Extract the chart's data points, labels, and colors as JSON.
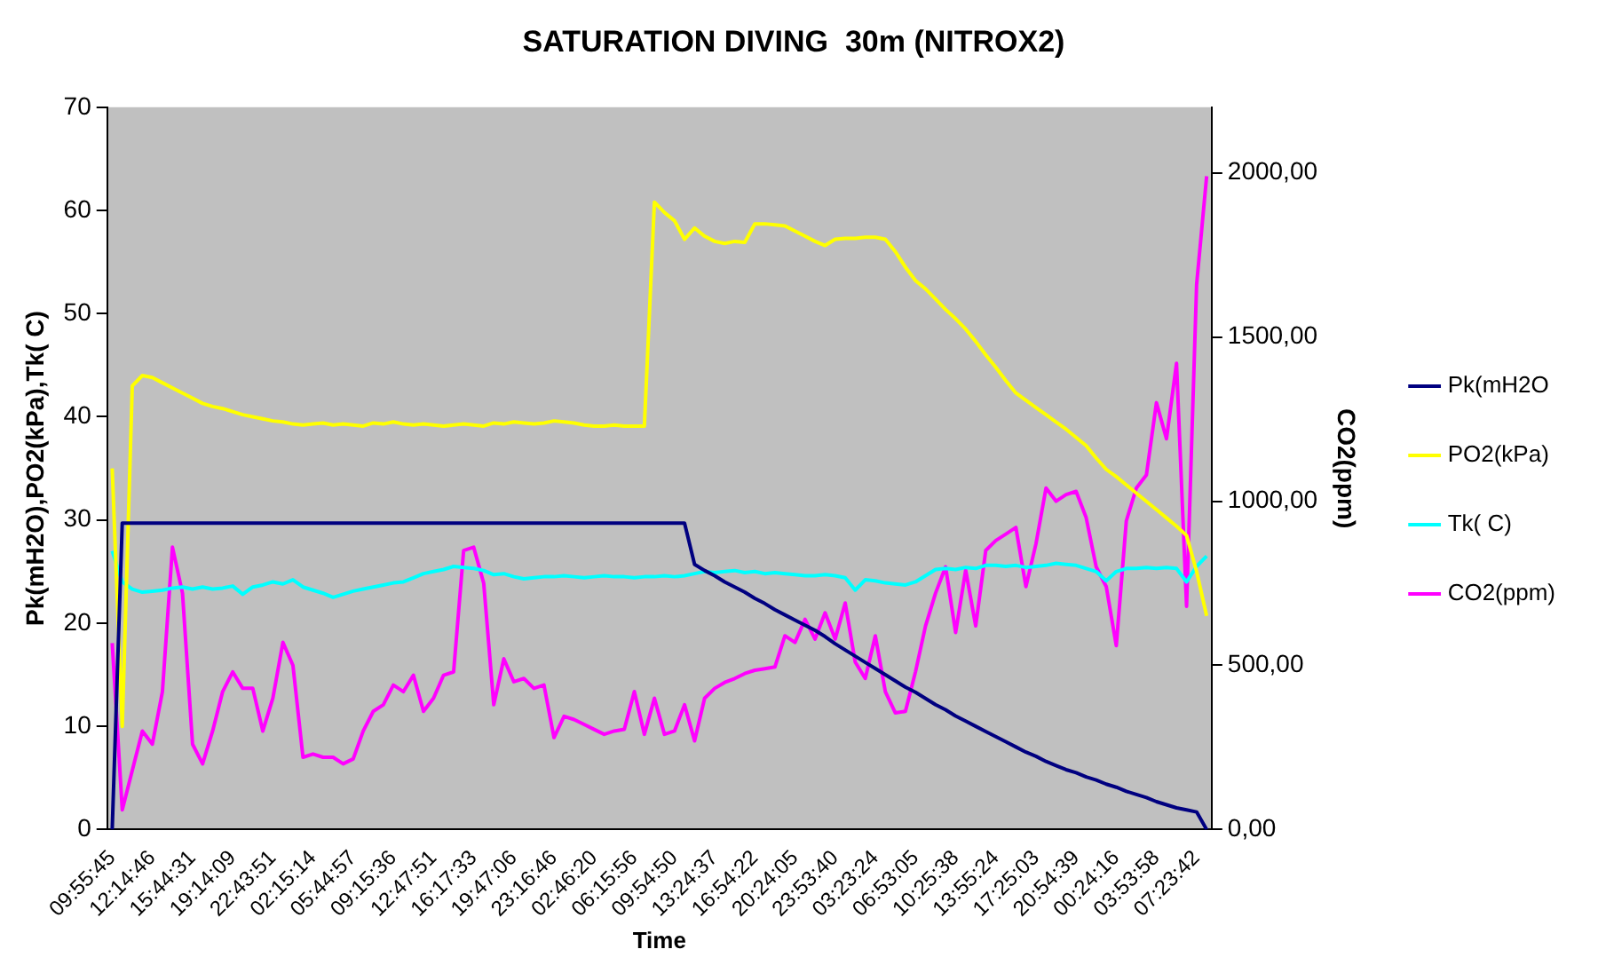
{
  "chart_data": {
    "type": "line",
    "title": "SATURATION DIVING  30m (NITROX2)",
    "xlabel": "Time",
    "ylabel": "Pk(mH2O),PO2(kPa),Tk( C)",
    "y2label": "CO2(ppm)",
    "categories": [
      "09:55:45",
      null,
      null,
      null,
      "12:14:46",
      null,
      null,
      null,
      "15:44:31",
      null,
      null,
      null,
      "19:14:09",
      null,
      null,
      null,
      "22:43:51",
      null,
      null,
      null,
      "02:15:14",
      null,
      null,
      null,
      "05:44:57",
      null,
      null,
      null,
      "09:15:36",
      null,
      null,
      null,
      "12:47:51",
      null,
      null,
      null,
      "16:17:33",
      null,
      null,
      null,
      "19:47:06",
      null,
      null,
      null,
      "23:16:46",
      null,
      null,
      null,
      "02:46:20",
      null,
      null,
      null,
      "06:15:56",
      null,
      null,
      null,
      "09:54:50",
      null,
      null,
      null,
      "13:24:37",
      null,
      null,
      null,
      "16:54:22",
      null,
      null,
      null,
      "20:24:05",
      null,
      null,
      null,
      "23:53:40",
      null,
      null,
      null,
      "03:23:24",
      null,
      null,
      null,
      "06:53:05",
      null,
      null,
      null,
      "10:25:38",
      null,
      null,
      null,
      "13:55:24",
      null,
      null,
      null,
      "17:25:03",
      null,
      null,
      null,
      "20:54:39",
      null,
      null,
      null,
      "00:24:16",
      null,
      null,
      null,
      "03:53:58",
      null,
      null,
      null,
      "07:23:42",
      null
    ],
    "series": [
      {
        "name": "Pk(mH2O",
        "color": "#000080",
        "values": [
          0,
          29.7,
          29.7,
          29.7,
          29.7,
          29.7,
          29.7,
          29.7,
          29.7,
          29.7,
          29.7,
          29.7,
          29.7,
          29.7,
          29.7,
          29.7,
          29.7,
          29.7,
          29.7,
          29.7,
          29.7,
          29.7,
          29.7,
          29.7,
          29.7,
          29.7,
          29.7,
          29.7,
          29.7,
          29.7,
          29.7,
          29.7,
          29.7,
          29.7,
          29.7,
          29.7,
          29.7,
          29.7,
          29.7,
          29.7,
          29.7,
          29.7,
          29.7,
          29.7,
          29.7,
          29.7,
          29.7,
          29.7,
          29.7,
          29.7,
          29.7,
          29.7,
          29.7,
          29.7,
          29.7,
          29.7,
          29.7,
          29.7,
          25.7,
          25.1,
          24.6,
          24.0,
          23.5,
          23.0,
          22.4,
          21.9,
          21.3,
          20.8,
          20.3,
          19.8,
          19.3,
          18.7,
          18.0,
          17.4,
          16.8,
          16.2,
          15.6,
          15.0,
          14.4,
          13.8,
          13.3,
          12.7,
          12.1,
          11.6,
          11.0,
          10.5,
          10.0,
          9.5,
          9.0,
          8.5,
          8.0,
          7.5,
          7.1,
          6.6,
          6.2,
          5.8,
          5.5,
          5.1,
          4.8,
          4.4,
          4.1,
          3.7,
          3.4,
          3.1,
          2.7,
          2.4,
          2.1,
          1.9,
          1.7,
          0
        ]
      },
      {
        "name": "PO2(kPa)",
        "color": "#ffff00",
        "values": [
          35,
          10,
          43,
          44,
          43.8,
          43.3,
          42.8,
          42.3,
          41.8,
          41.3,
          41,
          40.8,
          40.5,
          40.2,
          40,
          39.8,
          39.6,
          39.5,
          39.3,
          39.2,
          39.3,
          39.4,
          39.2,
          39.3,
          39.2,
          39.1,
          39.4,
          39.3,
          39.5,
          39.3,
          39.2,
          39.3,
          39.2,
          39.1,
          39.2,
          39.3,
          39.2,
          39.1,
          39.4,
          39.3,
          39.5,
          39.4,
          39.3,
          39.4,
          39.6,
          39.5,
          39.4,
          39.2,
          39.1,
          39.1,
          39.2,
          39.1,
          39.1,
          39.1,
          60.8,
          59.8,
          59,
          57.2,
          58.3,
          57.5,
          57,
          56.8,
          57,
          56.9,
          58.7,
          58.7,
          58.6,
          58.5,
          58,
          57.5,
          57,
          56.6,
          57.2,
          57.3,
          57.3,
          57.4,
          57.4,
          57.2,
          56,
          54.5,
          53.2,
          52.4,
          51.4,
          50.4,
          49.5,
          48.5,
          47.3,
          46,
          44.8,
          43.5,
          42.3,
          41.6,
          40.9,
          40.2,
          39.5,
          38.8,
          38,
          37.2,
          36,
          34.9,
          34.2,
          33.4,
          32.6,
          31.8,
          31,
          30.2,
          29.4,
          28.5,
          25,
          20.7
        ]
      },
      {
        "name": "Tk( C)",
        "color": "#00ffff",
        "values": [
          27,
          24,
          23.3,
          23.0,
          23.1,
          23.2,
          23.4,
          23.5,
          23.3,
          23.5,
          23.3,
          23.4,
          23.6,
          22.8,
          23.5,
          23.7,
          24.0,
          23.8,
          24.2,
          23.5,
          23.2,
          22.9,
          22.5,
          22.8,
          23.1,
          23.3,
          23.5,
          23.7,
          23.9,
          24.0,
          24.4,
          24.8,
          25.0,
          25.2,
          25.5,
          25.4,
          25.3,
          25.1,
          24.7,
          24.8,
          24.5,
          24.3,
          24.4,
          24.5,
          24.5,
          24.6,
          24.5,
          24.4,
          24.5,
          24.6,
          24.5,
          24.5,
          24.4,
          24.5,
          24.5,
          24.6,
          24.5,
          24.6,
          24.8,
          25.0,
          24.9,
          25.0,
          25.1,
          24.9,
          25.0,
          24.8,
          24.9,
          24.8,
          24.7,
          24.6,
          24.6,
          24.7,
          24.6,
          24.4,
          23.2,
          24.2,
          24.1,
          23.9,
          23.8,
          23.7,
          24.0,
          24.6,
          25.2,
          25.3,
          25.2,
          25.4,
          25.3,
          25.6,
          25.6,
          25.5,
          25.6,
          25.4,
          25.5,
          25.6,
          25.8,
          25.7,
          25.6,
          25.3,
          25.0,
          24.1,
          25.0,
          25.3,
          25.3,
          25.4,
          25.3,
          25.4,
          25.3,
          24.0,
          25.5,
          26.5
        ]
      },
      {
        "name": "CO2(ppm)",
        "color": "#ff00ff",
        "axis": "y2",
        "values": [
          568,
          60,
          180,
          300,
          260,
          420,
          860,
          720,
          260,
          200,
          300,
          420,
          480,
          430,
          430,
          300,
          400,
          570,
          500,
          220,
          230,
          220,
          220,
          200,
          215,
          300,
          360,
          380,
          440,
          420,
          470,
          360,
          400,
          470,
          480,
          850,
          860,
          750,
          380,
          520,
          450,
          460,
          430,
          440,
          280,
          345,
          335,
          320,
          305,
          290,
          300,
          305,
          420,
          290,
          400,
          290,
          300,
          380,
          270,
          400,
          430,
          448,
          460,
          475,
          485,
          490,
          495,
          590,
          570,
          640,
          580,
          660,
          580,
          690,
          510,
          460,
          590,
          420,
          355,
          360,
          480,
          620,
          720,
          800,
          600,
          790,
          620,
          850,
          880,
          900,
          920,
          740,
          870,
          1040,
          1000,
          1020,
          1030,
          950,
          800,
          740,
          560,
          940,
          1040,
          1080,
          1300,
          1190,
          1420,
          680,
          1660,
          1990
        ]
      }
    ],
    "ylim": [
      0,
      70
    ],
    "yticks": [
      0,
      10,
      20,
      30,
      40,
      50,
      60,
      70
    ],
    "y2lim": [
      0,
      2200
    ],
    "y2ticks": [
      {
        "value": 0,
        "label": "0,00"
      },
      {
        "value": 500,
        "label": "500,00"
      },
      {
        "value": 1000,
        "label": "1000,00"
      },
      {
        "value": 1500,
        "label": "1500,00"
      },
      {
        "value": 2000,
        "label": "2000,00"
      }
    ],
    "grid": false,
    "legend": "right",
    "marker": "none",
    "line_style": "solid"
  }
}
